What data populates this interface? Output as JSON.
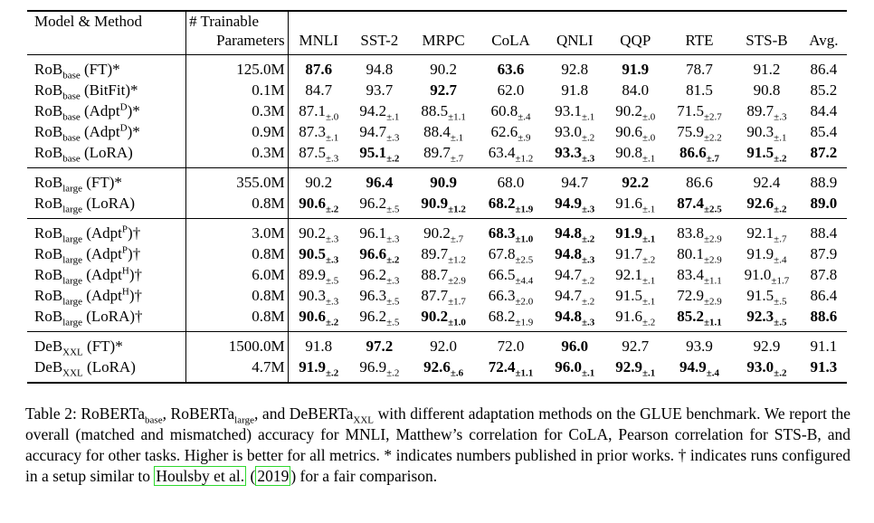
{
  "table": {
    "header": {
      "method": "Model & Method",
      "params": [
        "# Trainable",
        "Parameters"
      ],
      "columns": [
        "MNLI",
        "SST-2",
        "MRPC",
        "CoLA",
        "QNLI",
        "QQP",
        "RTE",
        "STS-B",
        "Avg."
      ]
    },
    "groups": [
      {
        "rows": [
          {
            "model": "RoB",
            "size": "base",
            "method": " (FT)*",
            "params": "125.0M",
            "cells": [
              {
                "v": "87.6",
                "b": true
              },
              {
                "v": "94.8"
              },
              {
                "v": "90.2"
              },
              {
                "v": "63.6",
                "b": true
              },
              {
                "v": "92.8"
              },
              {
                "v": "91.9",
                "b": true
              },
              {
                "v": "78.7"
              },
              {
                "v": "91.2"
              },
              {
                "v": "86.4"
              }
            ]
          },
          {
            "model": "RoB",
            "size": "base",
            "method": " (BitFit)*",
            "params": "0.1M",
            "cells": [
              {
                "v": "84.7"
              },
              {
                "v": "93.7"
              },
              {
                "v": "92.7",
                "b": true
              },
              {
                "v": "62.0"
              },
              {
                "v": "91.8"
              },
              {
                "v": "84.0"
              },
              {
                "v": "81.5"
              },
              {
                "v": "90.8"
              },
              {
                "v": "85.2"
              }
            ]
          },
          {
            "model": "RoB",
            "size": "base",
            "method": " (Adpt",
            "variant": "D",
            "suffix": ")*",
            "params": "0.3M",
            "cells": [
              {
                "v": "87.1",
                "pm": "±.0"
              },
              {
                "v": "94.2",
                "pm": "±.1"
              },
              {
                "v": "88.5",
                "pm": "±1.1"
              },
              {
                "v": "60.8",
                "pm": "±.4"
              },
              {
                "v": "93.1",
                "pm": "±.1"
              },
              {
                "v": "90.2",
                "pm": "±.0"
              },
              {
                "v": "71.5",
                "pm": "±2.7"
              },
              {
                "v": "89.7",
                "pm": "±.3"
              },
              {
                "v": "84.4"
              }
            ]
          },
          {
            "model": "RoB",
            "size": "base",
            "method": " (Adpt",
            "variant": "D",
            "suffix": ")*",
            "params": "0.9M",
            "cells": [
              {
                "v": "87.3",
                "pm": "±.1"
              },
              {
                "v": "94.7",
                "pm": "±.3"
              },
              {
                "v": "88.4",
                "pm": "±.1"
              },
              {
                "v": "62.6",
                "pm": "±.9"
              },
              {
                "v": "93.0",
                "pm": "±.2"
              },
              {
                "v": "90.6",
                "pm": "±.0"
              },
              {
                "v": "75.9",
                "pm": "±2.2"
              },
              {
                "v": "90.3",
                "pm": "±.1"
              },
              {
                "v": "85.4"
              }
            ]
          },
          {
            "model": "RoB",
            "size": "base",
            "method": " (LoRA)",
            "params": "0.3M",
            "cells": [
              {
                "v": "87.5",
                "pm": "±.3"
              },
              {
                "v": "95.1",
                "pm": "±.2",
                "b": true
              },
              {
                "v": "89.7",
                "pm": "±.7"
              },
              {
                "v": "63.4",
                "pm": "±1.2"
              },
              {
                "v": "93.3",
                "pm": "±.3",
                "b": true
              },
              {
                "v": "90.8",
                "pm": "±.1"
              },
              {
                "v": "86.6",
                "pm": "±.7",
                "b": true
              },
              {
                "v": "91.5",
                "pm": "±.2",
                "b": true
              },
              {
                "v": "87.2",
                "b": true
              }
            ]
          }
        ]
      },
      {
        "rows": [
          {
            "model": "RoB",
            "size": "large",
            "method": " (FT)*",
            "params": "355.0M",
            "cells": [
              {
                "v": "90.2"
              },
              {
                "v": "96.4",
                "b": true
              },
              {
                "v": "90.9",
                "b": true
              },
              {
                "v": "68.0"
              },
              {
                "v": "94.7"
              },
              {
                "v": "92.2",
                "b": true
              },
              {
                "v": "86.6"
              },
              {
                "v": "92.4"
              },
              {
                "v": "88.9"
              }
            ]
          },
          {
            "model": "RoB",
            "size": "large",
            "method": " (LoRA)",
            "params": "0.8M",
            "cells": [
              {
                "v": "90.6",
                "pm": "±.2",
                "b": true
              },
              {
                "v": "96.2",
                "pm": "±.5"
              },
              {
                "v": "90.9",
                "pm": "±1.2",
                "b": true
              },
              {
                "v": "68.2",
                "pm": "±1.9",
                "b": true
              },
              {
                "v": "94.9",
                "pm": "±.3",
                "b": true
              },
              {
                "v": "91.6",
                "pm": "±.1"
              },
              {
                "v": "87.4",
                "pm": "±2.5",
                "b": true
              },
              {
                "v": "92.6",
                "pm": "±.2",
                "b": true
              },
              {
                "v": "89.0",
                "b": true
              }
            ]
          }
        ]
      },
      {
        "rows": [
          {
            "model": "RoB",
            "size": "large",
            "method": " (Adpt",
            "variant": "P",
            "suffix": ")†",
            "params": "3.0M",
            "cells": [
              {
                "v": "90.2",
                "pm": "±.3"
              },
              {
                "v": "96.1",
                "pm": "±.3"
              },
              {
                "v": "90.2",
                "pm": "±.7"
              },
              {
                "v": "68.3",
                "pm": "±1.0",
                "b": true
              },
              {
                "v": "94.8",
                "pm": "±.2",
                "b": true
              },
              {
                "v": "91.9",
                "pm": "±.1",
                "b": true
              },
              {
                "v": "83.8",
                "pm": "±2.9"
              },
              {
                "v": "92.1",
                "pm": "±.7"
              },
              {
                "v": "88.4"
              }
            ]
          },
          {
            "model": "RoB",
            "size": "large",
            "method": " (Adpt",
            "variant": "P",
            "suffix": ")†",
            "params": "0.8M",
            "cells": [
              {
                "v": "90.5",
                "pm": "±.3",
                "b": true
              },
              {
                "v": "96.6",
                "pm": "±.2",
                "b": true
              },
              {
                "v": "89.7",
                "pm": "±1.2"
              },
              {
                "v": "67.8",
                "pm": "±2.5"
              },
              {
                "v": "94.8",
                "pm": "±.3",
                "b": true
              },
              {
                "v": "91.7",
                "pm": "±.2"
              },
              {
                "v": "80.1",
                "pm": "±2.9"
              },
              {
                "v": "91.9",
                "pm": "±.4"
              },
              {
                "v": "87.9"
              }
            ]
          },
          {
            "model": "RoB",
            "size": "large",
            "method": " (Adpt",
            "variant": "H",
            "suffix": ")†",
            "params": "6.0M",
            "cells": [
              {
                "v": "89.9",
                "pm": "±.5"
              },
              {
                "v": "96.2",
                "pm": "±.3"
              },
              {
                "v": "88.7",
                "pm": "±2.9"
              },
              {
                "v": "66.5",
                "pm": "±4.4"
              },
              {
                "v": "94.7",
                "pm": "±.2"
              },
              {
                "v": "92.1",
                "pm": "±.1"
              },
              {
                "v": "83.4",
                "pm": "±1.1"
              },
              {
                "v": "91.0",
                "pm": "±1.7"
              },
              {
                "v": "87.8"
              }
            ]
          },
          {
            "model": "RoB",
            "size": "large",
            "method": " (Adpt",
            "variant": "H",
            "suffix": ")†",
            "params": "0.8M",
            "cells": [
              {
                "v": "90.3",
                "pm": "±.3"
              },
              {
                "v": "96.3",
                "pm": "±.5"
              },
              {
                "v": "87.7",
                "pm": "±1.7"
              },
              {
                "v": "66.3",
                "pm": "±2.0"
              },
              {
                "v": "94.7",
                "pm": "±.2"
              },
              {
                "v": "91.5",
                "pm": "±.1"
              },
              {
                "v": "72.9",
                "pm": "±2.9"
              },
              {
                "v": "91.5",
                "pm": "±.5"
              },
              {
                "v": "86.4"
              }
            ]
          },
          {
            "model": "RoB",
            "size": "large",
            "method": " (LoRA)†",
            "params": "0.8M",
            "cells": [
              {
                "v": "90.6",
                "pm": "±.2",
                "b": true
              },
              {
                "v": "96.2",
                "pm": "±.5"
              },
              {
                "v": "90.2",
                "pm": "±1.0",
                "b": true
              },
              {
                "v": "68.2",
                "pm": "±1.9"
              },
              {
                "v": "94.8",
                "pm": "±.3",
                "b": true
              },
              {
                "v": "91.6",
                "pm": "±.2"
              },
              {
                "v": "85.2",
                "pm": "±1.1",
                "b": true
              },
              {
                "v": "92.3",
                "pm": "±.5",
                "b": true
              },
              {
                "v": "88.6",
                "b": true
              }
            ]
          }
        ]
      },
      {
        "rows": [
          {
            "model": "DeB",
            "size": "XXL",
            "method": " (FT)*",
            "params": "1500.0M",
            "cells": [
              {
                "v": "91.8"
              },
              {
                "v": "97.2",
                "b": true
              },
              {
                "v": "92.0"
              },
              {
                "v": "72.0"
              },
              {
                "v": "96.0",
                "b": true
              },
              {
                "v": "92.7"
              },
              {
                "v": "93.9"
              },
              {
                "v": "92.9"
              },
              {
                "v": "91.1"
              }
            ]
          },
          {
            "model": "DeB",
            "size": "XXL",
            "method": " (LoRA)",
            "params": "4.7M",
            "cells": [
              {
                "v": "91.9",
                "pm": "±.2",
                "b": true
              },
              {
                "v": "96.9",
                "pm": "±.2"
              },
              {
                "v": "92.6",
                "pm": "±.6",
                "b": true
              },
              {
                "v": "72.4",
                "pm": "±1.1",
                "b": true
              },
              {
                "v": "96.0",
                "pm": "±.1",
                "b": true
              },
              {
                "v": "92.9",
                "pm": "±.1",
                "b": true
              },
              {
                "v": "94.9",
                "pm": "±.4",
                "b": true
              },
              {
                "v": "93.0",
                "pm": "±.2",
                "b": true
              },
              {
                "v": "91.3",
                "b": true
              }
            ]
          }
        ]
      }
    ]
  },
  "caption": [
    {
      "t": "Table 2: RoBERTa"
    },
    {
      "t": "base",
      "kind": "sub"
    },
    {
      "t": ", RoBERTa"
    },
    {
      "t": "large",
      "kind": "sub"
    },
    {
      "t": ", and DeBERTa"
    },
    {
      "t": "XXL",
      "kind": "sub"
    },
    {
      "t": " with different adaptation methods on the GLUE benchmark. We report the overall (matched and mismatched) accuracy for MNLI, Matthew’s correlation for CoLA, Pearson correlation for STS-B, and accuracy for other tasks. Higher is better for all metrics. * indicates numbers published in prior works. † indicates runs configured in a setup similar to "
    },
    {
      "t": "Houlsby et al.",
      "kind": "link"
    },
    {
      "t": " ("
    },
    {
      "t": "2019",
      "kind": "link"
    },
    {
      "t": ") for a fair comparison."
    }
  ]
}
